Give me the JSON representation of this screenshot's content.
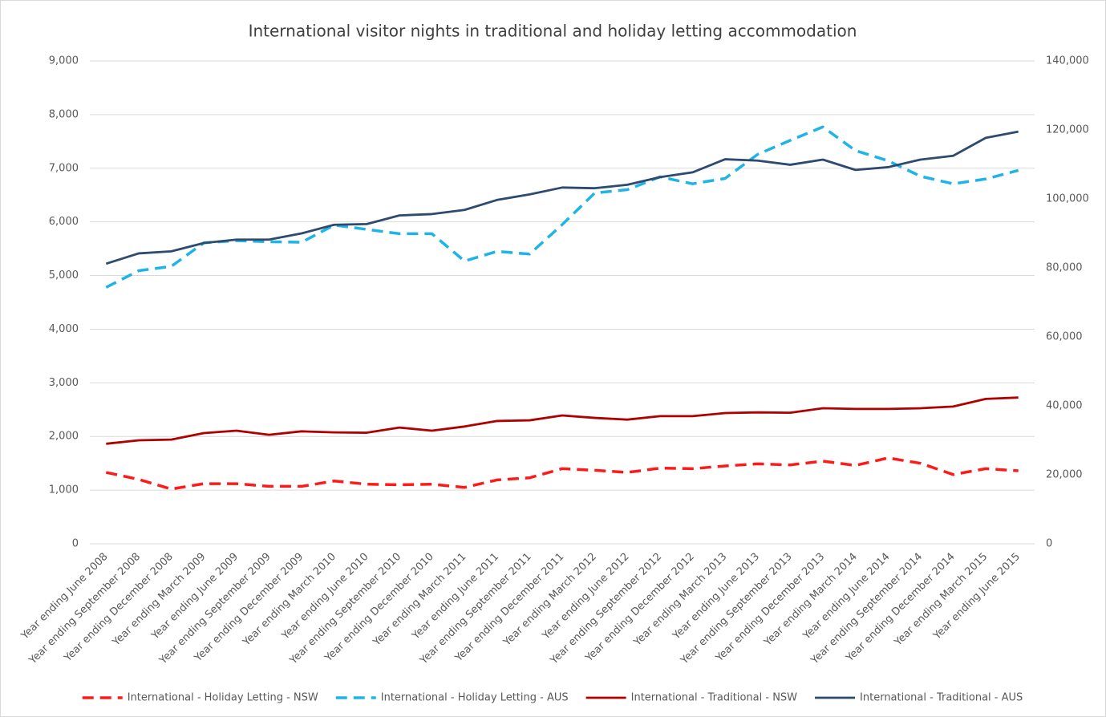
{
  "chart_data": {
    "type": "line",
    "title": "International visitor nights in traditional and holiday letting accommodation",
    "categories": [
      "Year ending June 2008",
      "Year ending September 2008",
      "Year ending December 2008",
      "Year ending March 2009",
      "Year ending June 2009",
      "Year ending September 2009",
      "Year ending December 2009",
      "Year ending March 2010",
      "Year ending June 2010",
      "Year ending September 2010",
      "Year ending December 2010",
      "Year ending March 2011",
      "Year ending June 2011",
      "Year ending September 2011",
      "Year ending December 2011",
      "Year ending March 2012",
      "Year ending June 2012",
      "Year ending September 2012",
      "Year ending December 2012",
      "Year ending March 2013",
      "Year ending June 2013",
      "Year ending September 2013",
      "Year ending December 2013",
      "Year ending March 2014",
      "Year ending June 2014",
      "Year ending September 2014",
      "Year ending December 2014",
      "Year ending March 2015",
      "Year ending June 2015"
    ],
    "series": [
      {
        "name": "International - Holiday Letting - NSW",
        "color": "#ff1a1a",
        "style": "dashed",
        "axis": "y",
        "values": [
          1330,
          1200,
          1020,
          1120,
          1120,
          1070,
          1070,
          1170,
          1110,
          1100,
          1110,
          1050,
          1190,
          1230,
          1400,
          1370,
          1330,
          1410,
          1400,
          1450,
          1490,
          1470,
          1540,
          1460,
          1600,
          1500,
          1290,
          1400,
          1360
        ]
      },
      {
        "name": "International - Holiday Letting - AUS",
        "color": "#1fb4e8",
        "style": "dashed",
        "axis": "y",
        "values": [
          4780,
          5090,
          5170,
          5610,
          5650,
          5630,
          5620,
          5940,
          5860,
          5780,
          5780,
          5270,
          5450,
          5400,
          5950,
          6540,
          6600,
          6840,
          6710,
          6810,
          7260,
          7520,
          7770,
          7330,
          7140,
          6850,
          6710,
          6800,
          6960
        ]
      },
      {
        "name": "International - Traditional - NSW",
        "color": "#b00000",
        "style": "solid",
        "axis": "y2",
        "values": [
          29000,
          30000,
          30200,
          32100,
          32800,
          31600,
          32600,
          32300,
          32200,
          33700,
          32800,
          34000,
          35600,
          35800,
          37200,
          36500,
          36000,
          37000,
          37000,
          37900,
          38100,
          38000,
          39300,
          39100,
          39100,
          39300,
          39800,
          42000,
          42400
        ]
      },
      {
        "name": "International - Traditional - AUS",
        "color": "#2e4a6e",
        "style": "solid",
        "axis": "y2",
        "values": [
          81200,
          84200,
          84800,
          87200,
          88200,
          88200,
          90000,
          92500,
          92700,
          95200,
          95600,
          96800,
          99700,
          101300,
          103300,
          103100,
          104100,
          106300,
          107700,
          111500,
          111100,
          109900,
          111400,
          108400,
          109200,
          111400,
          112500,
          117700,
          119500
        ]
      }
    ],
    "ylim": [
      0,
      9000
    ],
    "yticks": [
      0,
      {
        "value": 1000,
        "label": "1,000"
      },
      {
        "value": 2000,
        "label": "2,000"
      },
      {
        "value": 3000,
        "label": "3,000"
      },
      {
        "value": 4000,
        "label": "4,000"
      },
      {
        "value": 5000,
        "label": "5,000"
      },
      {
        "value": 6000,
        "label": "6,000"
      },
      {
        "value": 7000,
        "label": "7,000"
      },
      {
        "value": 8000,
        "label": "8,000"
      },
      {
        "value": 9000,
        "label": "9,000"
      }
    ],
    "y2lim": [
      0,
      140000
    ],
    "y2ticks": [
      0,
      {
        "value": 20000,
        "label": "20,000"
      },
      {
        "value": 40000,
        "label": "40,000"
      },
      {
        "value": 60000,
        "label": "60,000"
      },
      {
        "value": 80000,
        "label": "80,000"
      },
      {
        "value": 100000,
        "label": "100,000"
      },
      {
        "value": 120000,
        "label": "120,000"
      },
      {
        "value": 140000,
        "label": "140,000"
      }
    ],
    "grid": true,
    "legend": "bottom"
  }
}
